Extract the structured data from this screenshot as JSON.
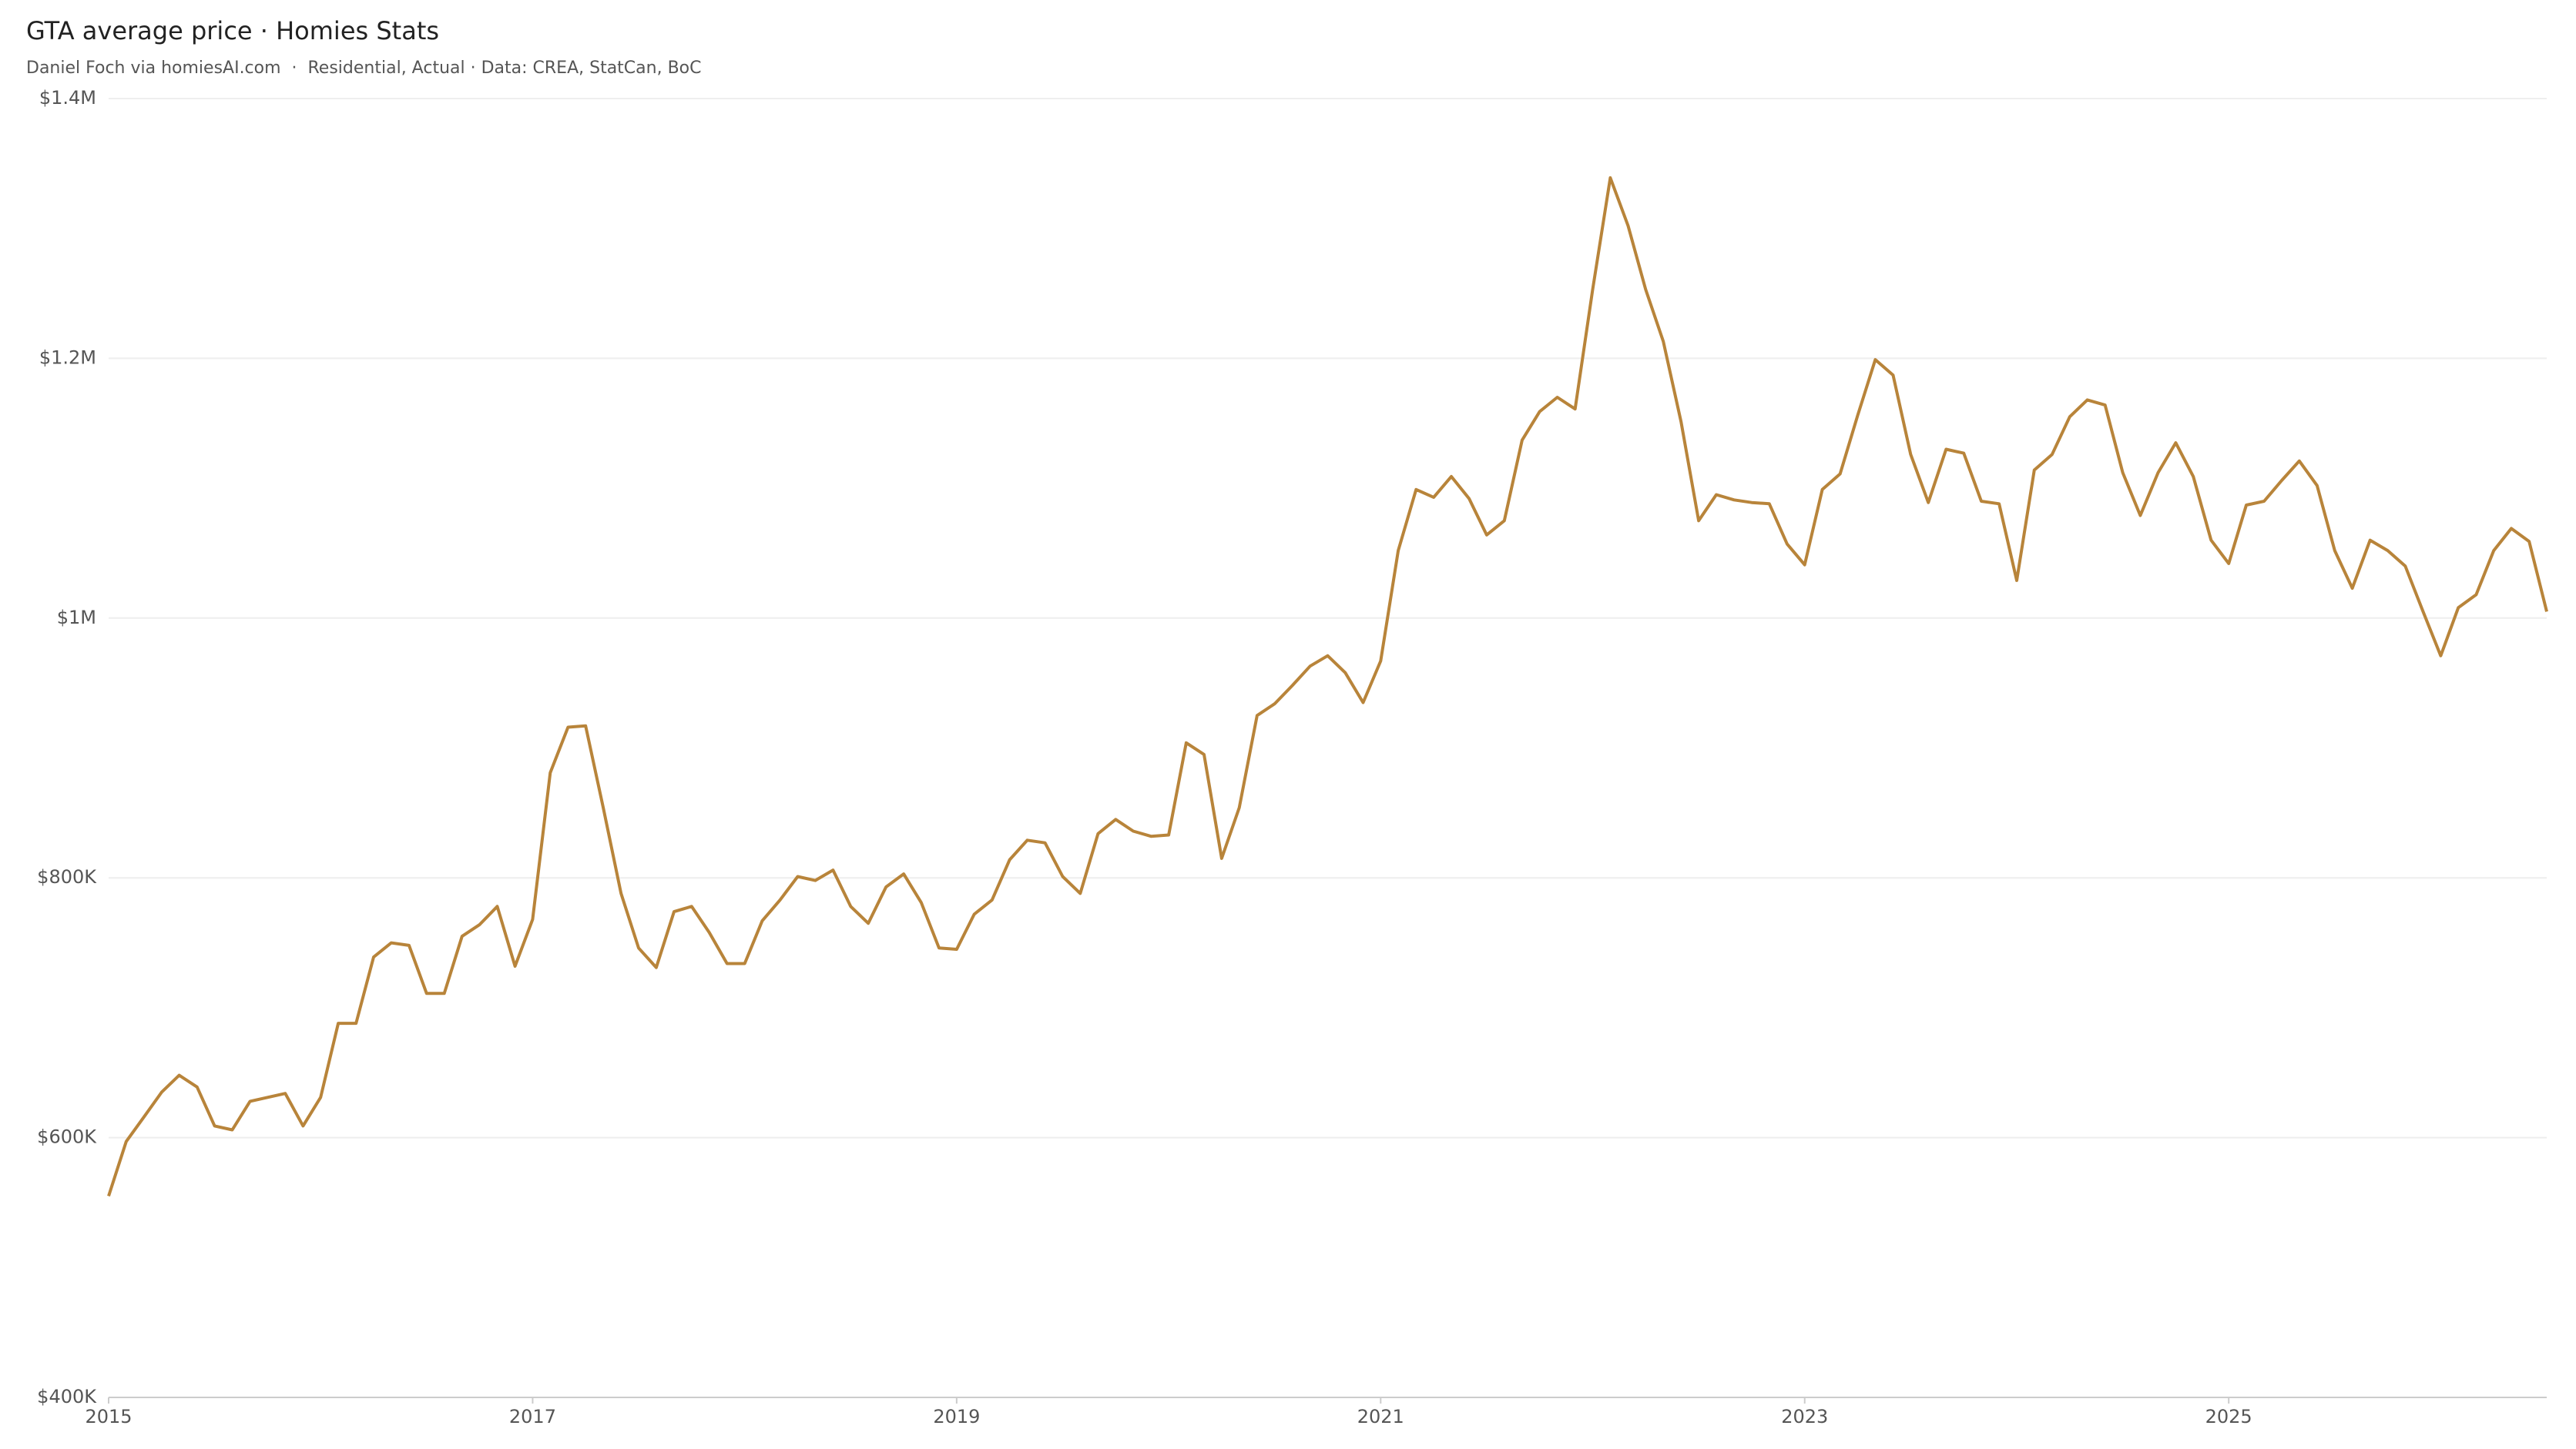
{
  "chart_data": {
    "type": "line",
    "title": "GTA average price · Homies Stats",
    "subtitle": "Daniel Foch via homiesAI.com  ·  Residential, Actual · Data: CREA, StatCan, BoC",
    "x": [
      2015,
      2015.083,
      2015.167,
      2015.25,
      2015.333,
      2015.417,
      2015.5,
      2015.583,
      2015.667,
      2015.75,
      2015.833,
      2015.917,
      2016,
      2016.083,
      2016.167,
      2016.25,
      2016.333,
      2016.417,
      2016.5,
      2016.583,
      2016.667,
      2016.75,
      2016.833,
      2016.917,
      2017,
      2017.083,
      2017.167,
      2017.25,
      2017.333,
      2017.417,
      2017.5,
      2017.583,
      2017.667,
      2017.75,
      2017.833,
      2017.917,
      2018,
      2018.083,
      2018.167,
      2018.25,
      2018.333,
      2018.417,
      2018.5,
      2018.583,
      2018.667,
      2018.75,
      2018.833,
      2018.917,
      2019,
      2019.083,
      2019.167,
      2019.25,
      2019.333,
      2019.417,
      2019.5,
      2019.583,
      2019.667,
      2019.75,
      2019.833,
      2019.917,
      2020,
      2020.083,
      2020.167,
      2020.25,
      2020.333,
      2020.417,
      2020.5,
      2020.583,
      2020.667,
      2020.75,
      2020.833,
      2020.917,
      2021,
      2021.083,
      2021.167,
      2021.25,
      2021.333,
      2021.417,
      2021.5,
      2021.583,
      2021.667,
      2021.75,
      2021.833,
      2021.917,
      2022,
      2022.083,
      2022.167,
      2022.25,
      2022.333,
      2022.417,
      2022.5,
      2022.583,
      2022.667,
      2022.75,
      2022.833,
      2022.917,
      2023,
      2023.083,
      2023.167,
      2023.25,
      2023.333,
      2023.417,
      2023.5,
      2023.583,
      2023.667,
      2023.75,
      2023.833,
      2023.917,
      2024,
      2024.083,
      2024.167,
      2024.25,
      2024.333,
      2024.417,
      2024.5,
      2024.583,
      2024.667,
      2024.75,
      2024.833,
      2024.917,
      2025,
      2025.083,
      2025.167,
      2025.25,
      2025.333,
      2025.417,
      2025.5,
      2025.583,
      2025.667,
      2025.75,
      2025.833,
      2025.917,
      2026,
      2026.083,
      2026.167,
      2026.25,
      2026.333,
      2026.417,
      2026.5
    ],
    "series": [
      {
        "color": "#b8843a",
        "values": [
          555000,
          597000,
          616000,
          635000,
          648000,
          639000,
          609000,
          606000,
          628000,
          631000,
          634000,
          609000,
          631000,
          688000,
          688000,
          739000,
          750000,
          748000,
          711000,
          711000,
          755000,
          764000,
          778000,
          732000,
          768000,
          881000,
          916000,
          917000,
          854000,
          788000,
          746000,
          731000,
          774000,
          778000,
          758000,
          734000,
          734000,
          767000,
          783000,
          801000,
          798000,
          806000,
          778000,
          765000,
          793000,
          803000,
          781000,
          746000,
          745000,
          772000,
          783000,
          814000,
          829000,
          827000,
          801000,
          788000,
          834000,
          845000,
          836000,
          832000,
          833000,
          904000,
          895000,
          815000,
          854000,
          925000,
          934000,
          948000,
          963000,
          971000,
          958000,
          935000,
          967000,
          1052000,
          1099000,
          1093000,
          1109000,
          1092000,
          1064000,
          1075000,
          1137000,
          1159000,
          1170000,
          1161000,
          1253000,
          1339000,
          1302000,
          1253000,
          1213000,
          1151000,
          1075000,
          1095000,
          1091000,
          1089000,
          1088000,
          1057000,
          1041000,
          1099000,
          1111000,
          1156000,
          1199000,
          1187000,
          1126000,
          1089000,
          1130000,
          1127000,
          1090000,
          1088000,
          1029000,
          1114000,
          1126000,
          1155000,
          1168000,
          1164000,
          1112000,
          1079000,
          1112000,
          1135000,
          1109000,
          1060000,
          1042000,
          1087000,
          1090000,
          1106000,
          1121000,
          1102000,
          1052000,
          1023000,
          1060000,
          1052000,
          1040000,
          1005000,
          971000,
          1008000,
          1018000,
          1052000,
          1069000,
          1059000,
          1005000
        ]
      }
    ],
    "xlim": [
      2015,
      2026.5
    ],
    "xticks": [
      2015,
      2017,
      2019,
      2021,
      2023,
      2025
    ],
    "ylim": [
      400000,
      1400000
    ],
    "yticks": [
      {
        "value": 400000,
        "label": "$400K"
      },
      {
        "value": 600000,
        "label": "$600K"
      },
      {
        "value": 800000,
        "label": "$800K"
      },
      {
        "value": 1000000,
        "label": "$1M"
      },
      {
        "value": 1200000,
        "label": "$1.2M"
      },
      {
        "value": 1400000,
        "label": "$1.4M"
      }
    ],
    "grid": true
  }
}
